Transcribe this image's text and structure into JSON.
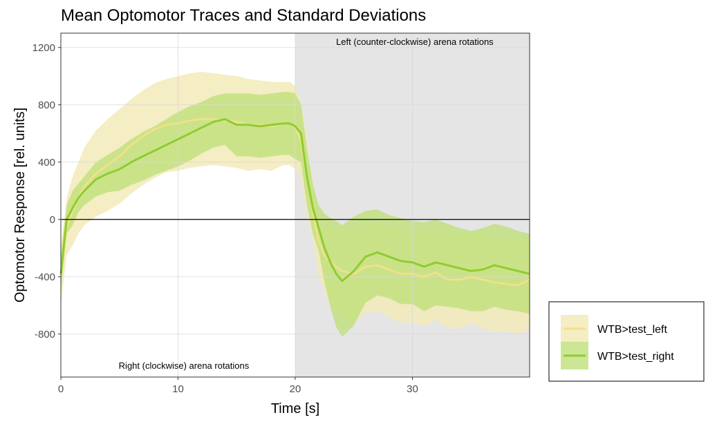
{
  "chart_data": {
    "type": "line",
    "title": "Mean Optomotor Traces and Standard Deviations",
    "xlabel": "Time [s]",
    "ylabel": "Optomotor Response [rel. units]",
    "xlim": [
      0,
      40
    ],
    "ylim": [
      -1100,
      1300
    ],
    "x_ticks": [
      0,
      10,
      20,
      30
    ],
    "y_ticks": [
      1200,
      800,
      400,
      0,
      -400,
      -800
    ],
    "shaded_region": {
      "x_start": 20,
      "x_end": 40,
      "color": "#e5e5e5"
    },
    "annotations": {
      "right_rotation": "Right (clockwise) arena rotations",
      "left_rotation": "Left (counter-clockwise) arena rotations"
    },
    "grid": true,
    "zero_line": true,
    "legend_position": "right",
    "colors": {
      "left_line": "#f0e08a",
      "left_band": "#f3eab8",
      "right_line": "#8fcc2e",
      "right_band": "#bfe07a"
    },
    "x": [
      0,
      0.5,
      1,
      1.5,
      2,
      3,
      4,
      5,
      6,
      7,
      8,
      9,
      10,
      11,
      12,
      13,
      14,
      15,
      16,
      17,
      18,
      19,
      19.5,
      20,
      20.5,
      21,
      21.5,
      22,
      22.5,
      23,
      23.5,
      24,
      25,
      26,
      27,
      28,
      29,
      30,
      31,
      32,
      33,
      34,
      35,
      36,
      37,
      38,
      39,
      40
    ],
    "series": [
      {
        "name": "WTB>test_left",
        "values": [
          -380,
          -50,
          60,
          150,
          230,
          320,
          380,
          440,
          520,
          580,
          630,
          660,
          670,
          690,
          700,
          700,
          690,
          680,
          660,
          660,
          650,
          670,
          670,
          640,
          550,
          300,
          50,
          -150,
          -250,
          -300,
          -330,
          -360,
          -380,
          -330,
          -320,
          -350,
          -380,
          -380,
          -400,
          -370,
          -420,
          -420,
          -400,
          -420,
          -440,
          -450,
          -460,
          -420
        ],
        "sd_upper": [
          -200,
          150,
          300,
          400,
          500,
          620,
          700,
          770,
          840,
          900,
          950,
          980,
          1000,
          1020,
          1030,
          1020,
          1010,
          1000,
          980,
          970,
          960,
          960,
          960,
          930,
          800,
          560,
          200,
          50,
          -50,
          -50,
          -60,
          -80,
          -60,
          -20,
          -30,
          -50,
          -70,
          -60,
          -80,
          -60,
          -100,
          -100,
          -100,
          -110,
          -130,
          -140,
          -150,
          -100
        ],
        "sd_lower": [
          -600,
          -250,
          -180,
          -100,
          -40,
          20,
          60,
          110,
          180,
          240,
          290,
          330,
          340,
          360,
          370,
          380,
          370,
          360,
          340,
          350,
          340,
          380,
          380,
          350,
          290,
          50,
          -150,
          -400,
          -500,
          -600,
          -650,
          -680,
          -720,
          -650,
          -640,
          -680,
          -720,
          -720,
          -740,
          -700,
          -760,
          -760,
          -720,
          -760,
          -780,
          -780,
          -800,
          -760
        ]
      },
      {
        "name": "WTB>test_right",
        "values": [
          -380,
          0,
          80,
          150,
          200,
          280,
          320,
          350,
          400,
          440,
          480,
          520,
          560,
          600,
          640,
          680,
          700,
          660,
          660,
          650,
          660,
          670,
          670,
          650,
          600,
          300,
          80,
          -60,
          -200,
          -300,
          -380,
          -430,
          -360,
          -260,
          -230,
          -260,
          -290,
          -300,
          -330,
          -300,
          -320,
          -340,
          -360,
          -350,
          -320,
          -340,
          -360,
          -380
        ],
        "sd_upper": [
          -250,
          100,
          200,
          250,
          300,
          400,
          450,
          500,
          560,
          610,
          650,
          700,
          750,
          790,
          820,
          860,
          880,
          880,
          880,
          870,
          880,
          890,
          890,
          880,
          800,
          500,
          250,
          100,
          40,
          10,
          -10,
          -40,
          20,
          60,
          70,
          30,
          10,
          -10,
          -20,
          0,
          -30,
          -60,
          -80,
          -60,
          -30,
          -50,
          -80,
          -100
        ],
        "sd_lower": [
          -500,
          -100,
          -40,
          50,
          100,
          160,
          190,
          200,
          240,
          270,
          310,
          340,
          370,
          410,
          460,
          500,
          520,
          440,
          440,
          430,
          440,
          450,
          450,
          420,
          400,
          100,
          -100,
          -220,
          -440,
          -610,
          -750,
          -820,
          -740,
          -580,
          -530,
          -550,
          -590,
          -590,
          -640,
          -600,
          -610,
          -620,
          -640,
          -640,
          -610,
          -630,
          -640,
          -660
        ]
      }
    ]
  }
}
